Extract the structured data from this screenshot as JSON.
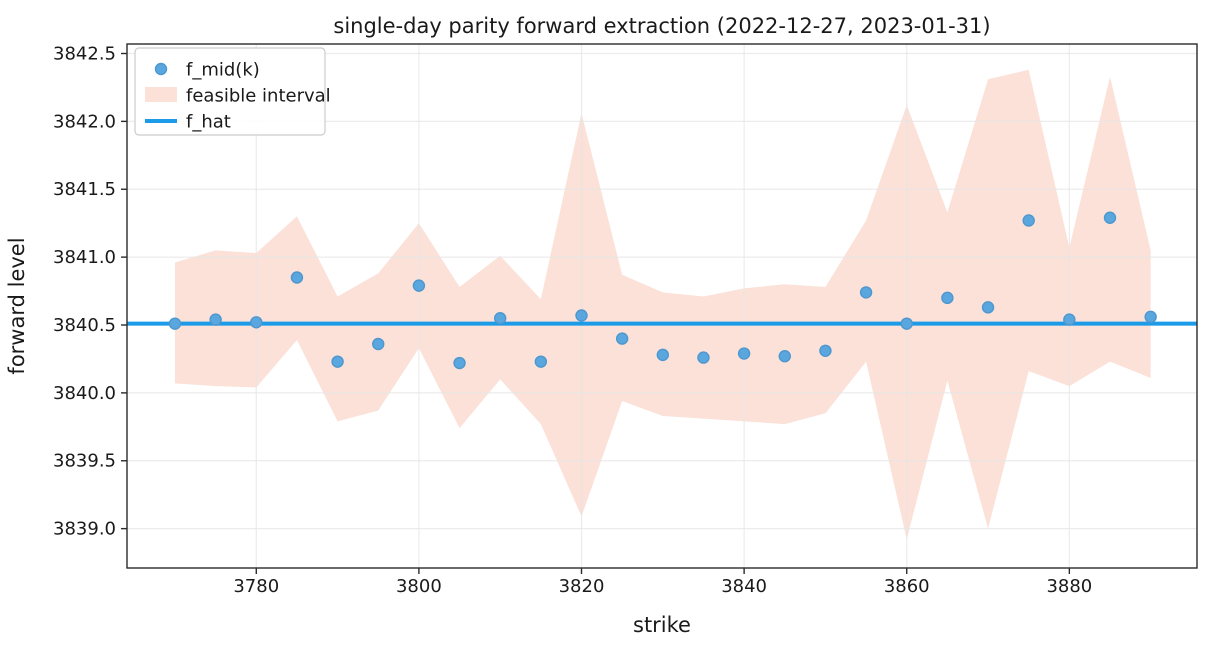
{
  "colors": {
    "scatter_fill": "#5AA7E0",
    "scatter_edge": "#4E97CE",
    "band_fill": "#F4A88C",
    "band_alpha": 0.34,
    "fhat_line": "#1B9BE8",
    "grid": "#E5E5E5",
    "spine": "#2B2B2B",
    "text": "#1A1A1A",
    "legend_border": "#CCCCCC",
    "legend_bg": "#FFFFFF"
  },
  "chart_data": {
    "type": "scatter",
    "title": "single-day parity forward extraction (2022-12-27, 2023-01-31)",
    "xlabel": "strike",
    "ylabel": "forward level",
    "xlim": [
      3764.1,
      3895.7
    ],
    "ylim": [
      3838.71,
      3842.57
    ],
    "grid": true,
    "legend_position": "upper left",
    "x_ticks": [
      3780,
      3800,
      3820,
      3840,
      3860,
      3880
    ],
    "x_tick_labels": [
      "3780",
      "3800",
      "3820",
      "3840",
      "3860",
      "3880"
    ],
    "y_ticks": [
      3839.0,
      3839.5,
      3840.0,
      3840.5,
      3841.0,
      3841.5,
      3842.0,
      3842.5
    ],
    "y_tick_labels": [
      "3839.0",
      "3839.5",
      "3840.0",
      "3840.5",
      "3841.0",
      "3841.5",
      "3842.0",
      "3842.5"
    ],
    "strikes": [
      3770,
      3775,
      3780,
      3785,
      3790,
      3795,
      3800,
      3805,
      3810,
      3815,
      3820,
      3825,
      3830,
      3835,
      3840,
      3845,
      3850,
      3855,
      3860,
      3865,
      3870,
      3875,
      3880,
      3885,
      3890
    ],
    "series": [
      {
        "name": "f_mid(k)",
        "type": "scatter",
        "values": [
          3840.51,
          3840.54,
          3840.52,
          3840.85,
          3840.23,
          3840.36,
          3840.79,
          3840.22,
          3840.55,
          3840.23,
          3840.57,
          3840.4,
          3840.28,
          3840.26,
          3840.29,
          3840.27,
          3840.31,
          3840.74,
          3840.51,
          3840.7,
          3840.63,
          3841.27,
          3840.54,
          3841.29,
          3840.56
        ]
      },
      {
        "name": "feasible interval",
        "type": "band",
        "upper": [
          3840.96,
          3841.05,
          3841.03,
          3841.3,
          3840.71,
          3840.88,
          3841.25,
          3840.78,
          3841.01,
          3840.69,
          3842.06,
          3840.87,
          3840.74,
          3840.71,
          3840.77,
          3840.8,
          3840.78,
          3841.27,
          3842.12,
          3841.33,
          3842.31,
          3842.38,
          3841.07,
          3842.33,
          3841.05
        ],
        "lower": [
          3840.07,
          3840.05,
          3840.04,
          3840.39,
          3839.79,
          3839.87,
          3840.33,
          3839.74,
          3840.1,
          3839.77,
          3839.09,
          3839.94,
          3839.83,
          3839.81,
          3839.79,
          3839.77,
          3839.85,
          3840.23,
          3838.92,
          3840.09,
          3839.0,
          3840.16,
          3840.05,
          3840.23,
          3840.11
        ]
      },
      {
        "name": "f_hat",
        "type": "hline",
        "value": 3840.51
      }
    ]
  }
}
